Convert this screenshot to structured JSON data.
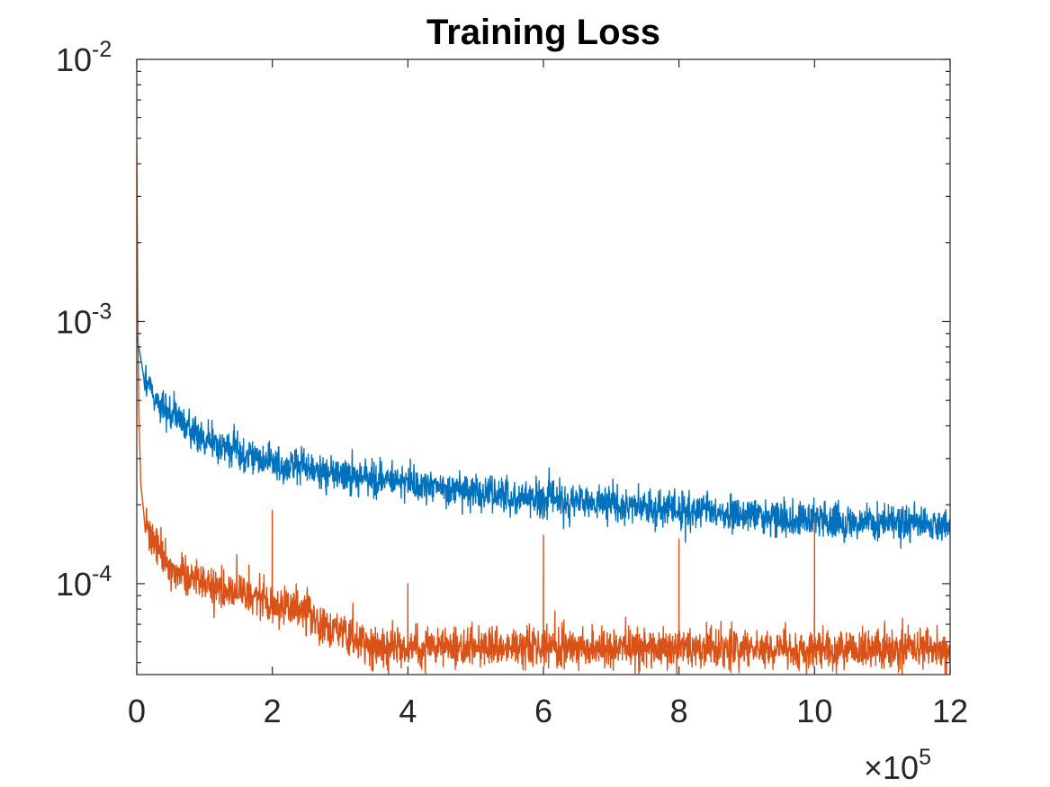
{
  "chart_data": {
    "type": "line",
    "title": "Training Loss",
    "xlabel": "",
    "ylabel": "",
    "x_scale": "linear",
    "y_scale": "log",
    "xlim": [
      0,
      1200000
    ],
    "ylim": [
      4.5e-05,
      0.01
    ],
    "x_multiplier_label": {
      "base": "×10",
      "exponent": "5"
    },
    "x_ticks": [
      {
        "value": 0,
        "label": "0"
      },
      {
        "value": 200000,
        "label": "2"
      },
      {
        "value": 400000,
        "label": "4"
      },
      {
        "value": 600000,
        "label": "6"
      },
      {
        "value": 800000,
        "label": "8"
      },
      {
        "value": 1000000,
        "label": "10"
      },
      {
        "value": 1200000,
        "label": "12"
      }
    ],
    "y_ticks": [
      {
        "value": 0.01,
        "base": "10",
        "exponent": "-2"
      },
      {
        "value": 0.001,
        "base": "10",
        "exponent": "-3"
      },
      {
        "value": 0.0001,
        "base": "10",
        "exponent": "-4"
      }
    ],
    "grid": false,
    "legend": "none",
    "series": [
      {
        "color": "#0072BD",
        "noise_amplitude_log10": 0.055,
        "points": [
          [
            0,
            0.00088
          ],
          [
            5000,
            0.00075
          ],
          [
            10000,
            0.00062
          ],
          [
            20000,
            0.00055
          ],
          [
            40000,
            0.00046
          ],
          [
            60000,
            0.00042
          ],
          [
            80000,
            0.00039
          ],
          [
            100000,
            0.00036
          ],
          [
            150000,
            0.000315
          ],
          [
            200000,
            0.00029
          ],
          [
            250000,
            0.000275
          ],
          [
            300000,
            0.00026
          ],
          [
            400000,
            0.00024
          ],
          [
            500000,
            0.000225
          ],
          [
            600000,
            0.00021
          ],
          [
            700000,
            0.0002
          ],
          [
            800000,
            0.00019
          ],
          [
            900000,
            0.000182
          ],
          [
            1000000,
            0.000175
          ],
          [
            1100000,
            0.00017
          ],
          [
            1200000,
            0.000165
          ]
        ],
        "spikes": []
      },
      {
        "color": "#D95319",
        "noise_amplitude_log10": 0.06,
        "points": [
          [
            0,
            0.0048
          ],
          [
            1500,
            0.0012
          ],
          [
            3000,
            0.00045
          ],
          [
            6000,
            0.00024
          ],
          [
            10000,
            0.00019
          ],
          [
            20000,
            0.000155
          ],
          [
            40000,
            0.000125
          ],
          [
            60000,
            0.00011
          ],
          [
            100000,
            0.0001
          ],
          [
            150000,
            9.2e-05
          ],
          [
            200000,
            8.5e-05
          ],
          [
            250000,
            7.8e-05
          ],
          [
            280000,
            7e-05
          ],
          [
            320000,
            6.2e-05
          ],
          [
            350000,
            5.8e-05
          ],
          [
            400000,
            5.7e-05
          ],
          [
            600000,
            5.7e-05
          ],
          [
            800000,
            5.7e-05
          ],
          [
            1000000,
            5.6e-05
          ],
          [
            1200000,
            5.6e-05
          ]
        ],
        "spikes": [
          {
            "x": 200000,
            "y": 0.00019
          },
          {
            "x": 400000,
            "y": 0.0001
          },
          {
            "x": 600000,
            "y": 0.000153
          },
          {
            "x": 800000,
            "y": 0.000148
          },
          {
            "x": 1000000,
            "y": 0.00018
          }
        ]
      }
    ]
  }
}
